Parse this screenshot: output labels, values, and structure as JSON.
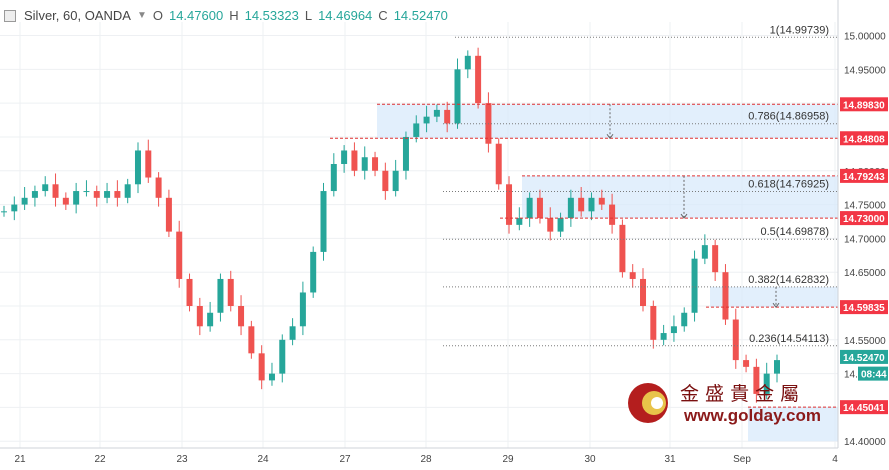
{
  "header": {
    "symbol": "Silver, 60, OANDA",
    "open_label": "O",
    "open": "14.47600",
    "high_label": "H",
    "high": "14.53323",
    "low_label": "L",
    "low": "14.46964",
    "close_label": "C",
    "close": "14.52470"
  },
  "chart_data": {
    "type": "candlestick",
    "title": "Silver, 60, OANDA",
    "ylim": [
      14.39,
      15.02
    ],
    "y_ticks": [
      "15.00000",
      "14.95000",
      "14.90000",
      "14.85000",
      "14.80000",
      "14.75000",
      "14.70000",
      "14.65000",
      "14.60000",
      "14.55000",
      "14.50000",
      "14.45000",
      "14.40000"
    ],
    "x_ticks": [
      "21",
      "22",
      "23",
      "24",
      "27",
      "28",
      "29",
      "30",
      "31",
      "Sep",
      "4"
    ],
    "fib_levels": [
      {
        "label": "1(14.99739)",
        "value": 14.99739
      },
      {
        "label": "0.786(14.86958)",
        "value": 14.86958
      },
      {
        "label": "0.618(14.76925)",
        "value": 14.76925
      },
      {
        "label": "0.5(14.69878)",
        "value": 14.69878
      },
      {
        "label": "0.382(14.62832)",
        "value": 14.62832
      },
      {
        "label": "0.236(14.54113)",
        "value": 14.54113
      }
    ],
    "price_tags": [
      {
        "text": "14.89830",
        "value": 14.8983,
        "color": "#f23645"
      },
      {
        "text": "14.84808",
        "value": 14.84808,
        "color": "#f23645"
      },
      {
        "text": "14.79243",
        "value": 14.79243,
        "color": "#f23645"
      },
      {
        "text": "14.73000",
        "value": 14.73,
        "color": "#f23645"
      },
      {
        "text": "14.59835",
        "value": 14.59835,
        "color": "#f23645"
      },
      {
        "text": "14.52470",
        "value": 14.5247,
        "color": "#26a69a"
      },
      {
        "text": "08:44",
        "value": 14.5,
        "color": "#26a69a"
      },
      {
        "text": "14.45041",
        "value": 14.45041,
        "color": "#f23645"
      }
    ],
    "close_path": [
      14.74,
      14.75,
      14.76,
      14.77,
      14.78,
      14.76,
      14.75,
      14.77,
      14.77,
      14.76,
      14.77,
      14.76,
      14.78,
      14.83,
      14.79,
      14.76,
      14.71,
      14.64,
      14.6,
      14.57,
      14.59,
      14.64,
      14.6,
      14.57,
      14.53,
      14.49,
      14.5,
      14.55,
      14.57,
      14.62,
      14.68,
      14.77,
      14.81,
      14.83,
      14.8,
      14.82,
      14.8,
      14.77,
      14.8,
      14.85,
      14.87,
      14.88,
      14.89,
      14.87,
      14.95,
      14.97,
      14.9,
      14.84,
      14.78,
      14.72,
      14.73,
      14.76,
      14.73,
      14.71,
      14.73,
      14.76,
      14.74,
      14.76,
      14.75,
      14.72,
      14.65,
      14.64,
      14.6,
      14.55,
      14.56,
      14.57,
      14.59,
      14.67,
      14.69,
      14.65,
      14.58,
      14.52,
      14.51,
      14.47,
      14.5,
      14.52
    ],
    "colors": {
      "up": "#26a69a",
      "down": "#ef5350",
      "zone_fill": "#d6e8fb"
    }
  },
  "watermark": {
    "name": "金 盛 貴 金 屬",
    "url": "www.golday.com"
  }
}
